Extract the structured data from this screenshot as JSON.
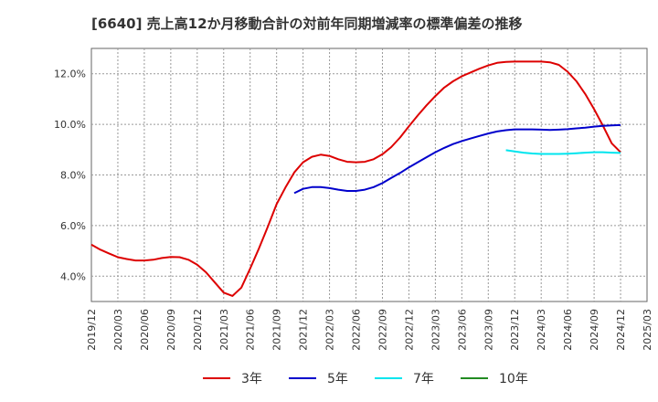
{
  "chart_data": {
    "type": "line",
    "title": "[6640]  売上高12か月移動合計の対前年同期増減率の標準偏差の推移",
    "xlabel": "",
    "ylabel": "",
    "x_ticks": [
      "2019/12",
      "2020/03",
      "2020/06",
      "2020/09",
      "2020/12",
      "2021/03",
      "2021/06",
      "2021/09",
      "2021/12",
      "2022/03",
      "2022/06",
      "2022/09",
      "2022/12",
      "2023/03",
      "2023/06",
      "2023/09",
      "2023/12",
      "2024/03",
      "2024/06",
      "2024/09",
      "2024/12",
      "2025/03"
    ],
    "y_ticks": [
      "4.0%",
      "6.0%",
      "8.0%",
      "10.0%",
      "12.0%"
    ],
    "ylim": [
      3.0,
      13.0
    ],
    "grid": true,
    "legend_position": "bottom",
    "series": [
      {
        "name": "3年",
        "color": "#dd0000",
        "points": [
          [
            "2019/12",
            5.25
          ],
          [
            "2020/01",
            5.05
          ],
          [
            "2020/02",
            4.9
          ],
          [
            "2020/03",
            4.75
          ],
          [
            "2020/04",
            4.68
          ],
          [
            "2020/05",
            4.62
          ],
          [
            "2020/06",
            4.62
          ],
          [
            "2020/07",
            4.65
          ],
          [
            "2020/08",
            4.72
          ],
          [
            "2020/09",
            4.76
          ],
          [
            "2020/10",
            4.75
          ],
          [
            "2020/11",
            4.65
          ],
          [
            "2020/12",
            4.45
          ],
          [
            "2021/01",
            4.15
          ],
          [
            "2021/02",
            3.75
          ],
          [
            "2021/03",
            3.35
          ],
          [
            "2021/04",
            3.22
          ],
          [
            "2021/05",
            3.55
          ],
          [
            "2021/06",
            4.3
          ],
          [
            "2021/07",
            5.1
          ],
          [
            "2021/08",
            5.95
          ],
          [
            "2021/09",
            6.85
          ],
          [
            "2021/10",
            7.5
          ],
          [
            "2021/11",
            8.1
          ],
          [
            "2021/12",
            8.5
          ],
          [
            "2022/01",
            8.72
          ],
          [
            "2022/02",
            8.8
          ],
          [
            "2022/03",
            8.75
          ],
          [
            "2022/04",
            8.62
          ],
          [
            "2022/05",
            8.52
          ],
          [
            "2022/06",
            8.5
          ],
          [
            "2022/07",
            8.52
          ],
          [
            "2022/08",
            8.62
          ],
          [
            "2022/09",
            8.82
          ],
          [
            "2022/10",
            9.1
          ],
          [
            "2022/11",
            9.48
          ],
          [
            "2022/12",
            9.92
          ],
          [
            "2023/01",
            10.35
          ],
          [
            "2023/02",
            10.75
          ],
          [
            "2023/03",
            11.12
          ],
          [
            "2023/04",
            11.45
          ],
          [
            "2023/05",
            11.7
          ],
          [
            "2023/06",
            11.9
          ],
          [
            "2023/07",
            12.05
          ],
          [
            "2023/08",
            12.2
          ],
          [
            "2023/09",
            12.33
          ],
          [
            "2023/10",
            12.43
          ],
          [
            "2023/11",
            12.47
          ],
          [
            "2023/12",
            12.48
          ],
          [
            "2024/01",
            12.48
          ],
          [
            "2024/02",
            12.48
          ],
          [
            "2024/03",
            12.48
          ],
          [
            "2024/04",
            12.45
          ],
          [
            "2024/05",
            12.35
          ],
          [
            "2024/06",
            12.08
          ],
          [
            "2024/07",
            11.7
          ],
          [
            "2024/08",
            11.2
          ],
          [
            "2024/09",
            10.6
          ],
          [
            "2024/10",
            9.95
          ],
          [
            "2024/11",
            9.25
          ],
          [
            "2024/12",
            8.9
          ]
        ]
      },
      {
        "name": "5年",
        "color": "#0000cc",
        "points": [
          [
            "2021/11",
            7.28
          ],
          [
            "2021/12",
            7.45
          ],
          [
            "2022/01",
            7.52
          ],
          [
            "2022/02",
            7.52
          ],
          [
            "2022/03",
            7.48
          ],
          [
            "2022/04",
            7.42
          ],
          [
            "2022/05",
            7.37
          ],
          [
            "2022/06",
            7.37
          ],
          [
            "2022/07",
            7.42
          ],
          [
            "2022/08",
            7.52
          ],
          [
            "2022/09",
            7.68
          ],
          [
            "2022/10",
            7.88
          ],
          [
            "2022/11",
            8.08
          ],
          [
            "2022/12",
            8.3
          ],
          [
            "2023/01",
            8.5
          ],
          [
            "2023/02",
            8.7
          ],
          [
            "2023/03",
            8.9
          ],
          [
            "2023/04",
            9.07
          ],
          [
            "2023/05",
            9.22
          ],
          [
            "2023/06",
            9.34
          ],
          [
            "2023/07",
            9.44
          ],
          [
            "2023/08",
            9.54
          ],
          [
            "2023/09",
            9.64
          ],
          [
            "2023/10",
            9.72
          ],
          [
            "2023/11",
            9.77
          ],
          [
            "2023/12",
            9.8
          ],
          [
            "2024/01",
            9.8
          ],
          [
            "2024/02",
            9.8
          ],
          [
            "2024/03",
            9.79
          ],
          [
            "2024/04",
            9.78
          ],
          [
            "2024/05",
            9.79
          ],
          [
            "2024/06",
            9.81
          ],
          [
            "2024/07",
            9.84
          ],
          [
            "2024/08",
            9.87
          ],
          [
            "2024/09",
            9.91
          ],
          [
            "2024/10",
            9.94
          ],
          [
            "2024/11",
            9.96
          ],
          [
            "2024/12",
            9.97
          ]
        ]
      },
      {
        "name": "7年",
        "color": "#00e5ee",
        "points": [
          [
            "2023/11",
            8.98
          ],
          [
            "2023/12",
            8.93
          ],
          [
            "2024/01",
            8.88
          ],
          [
            "2024/02",
            8.85
          ],
          [
            "2024/03",
            8.83
          ],
          [
            "2024/04",
            8.83
          ],
          [
            "2024/05",
            8.83
          ],
          [
            "2024/06",
            8.84
          ],
          [
            "2024/07",
            8.86
          ],
          [
            "2024/08",
            8.88
          ],
          [
            "2024/09",
            8.9
          ],
          [
            "2024/10",
            8.9
          ],
          [
            "2024/11",
            8.88
          ],
          [
            "2024/12",
            8.87
          ]
        ]
      },
      {
        "name": "10年",
        "color": "#228b22",
        "points": []
      }
    ]
  }
}
